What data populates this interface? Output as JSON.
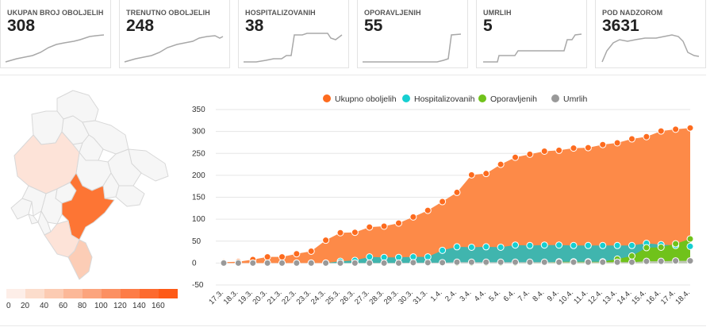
{
  "cards": [
    {
      "label": "UKUPAN BROJ OBOLJELIH",
      "value": "308"
    },
    {
      "label": "TRENUTNO OBOLJELIH",
      "value": "248"
    },
    {
      "label": "HOSPITALIZOVANIH",
      "value": "38"
    },
    {
      "label": "OPORAVLJENIH",
      "value": "55"
    },
    {
      "label": "UMRLIH",
      "value": "5"
    },
    {
      "label": "POD NADZOROM",
      "value": "3631"
    }
  ],
  "map": {
    "colors": {
      "c0": "#f6f6f6",
      "c20": "#fde3d8",
      "c40": "#fccdb6",
      "c160": "#fd7534"
    },
    "scale": {
      "labels": [
        "0",
        "20",
        "40",
        "60",
        "80",
        "100",
        "120",
        "140",
        "160"
      ],
      "colors": [
        "#fdeee8",
        "#fcddcc",
        "#fccbb2",
        "#fcb898",
        "#fca47d",
        "#fc9062",
        "#fd7c47",
        "#fd6a2e",
        "#fe5a17"
      ]
    }
  },
  "chart_data": {
    "type": "area",
    "categories": [
      "17.3.",
      "18.3.",
      "19.3.",
      "20.3.",
      "21.3.",
      "22.3.",
      "23.3.",
      "24.3.",
      "25.3.",
      "26.3.",
      "27.3.",
      "28.3.",
      "29.3.",
      "30.3.",
      "31.3.",
      "1.4.",
      "2.4.",
      "3.4.",
      "4.4.",
      "5.4.",
      "6.4.",
      "7.4.",
      "8.4.",
      "9.4.",
      "10.4.",
      "11.4.",
      "12.4.",
      "13.4.",
      "14.4.",
      "15.4.",
      "16.4.",
      "17.4.",
      "18.4."
    ],
    "series": [
      {
        "name": "Ukupno oboljelih",
        "color": "#fd6b1e",
        "fill": "#fd8a48",
        "values": [
          2,
          3,
          8,
          14,
          14,
          21,
          27,
          52,
          69,
          70,
          82,
          84,
          91,
          105,
          120,
          140,
          161,
          201,
          204,
          225,
          241,
          248,
          255,
          257,
          262,
          263,
          270,
          274,
          283,
          288,
          301,
          305,
          308
        ]
      },
      {
        "name": "Hospitalizovanih",
        "color": "#16cfd1",
        "fill": "#40b5ae",
        "values": [
          0,
          0,
          0,
          0,
          0,
          0,
          0,
          0,
          4,
          6,
          14,
          13,
          13,
          14,
          14,
          29,
          37,
          36,
          37,
          36,
          41,
          40,
          41,
          41,
          40,
          40,
          40,
          40,
          40,
          45,
          42,
          40,
          38
        ]
      },
      {
        "name": "Oporavljenih",
        "color": "#70c21b",
        "fill": "#70c21b",
        "values": [
          0,
          0,
          0,
          0,
          0,
          0,
          0,
          0,
          0,
          0,
          0,
          0,
          0,
          0,
          0,
          0,
          0,
          0,
          0,
          0,
          0,
          1,
          1,
          3,
          3,
          3,
          3,
          9,
          16,
          35,
          36,
          44,
          55
        ]
      },
      {
        "name": "Umrlih",
        "color": "#999999",
        "fill": "#c8c8c8",
        "values": [
          0,
          0,
          0,
          0,
          0,
          0,
          0,
          0,
          0,
          0,
          0,
          0,
          0,
          1,
          1,
          1,
          2,
          2,
          2,
          2,
          2,
          2,
          2,
          2,
          2,
          2,
          2,
          2,
          2,
          4,
          4,
          5,
          5
        ]
      }
    ],
    "yticks": [
      -50,
      0,
      50,
      100,
      150,
      200,
      250,
      300,
      350
    ],
    "ylim": [
      -50,
      350
    ],
    "legend": "top-center",
    "grid": true
  }
}
